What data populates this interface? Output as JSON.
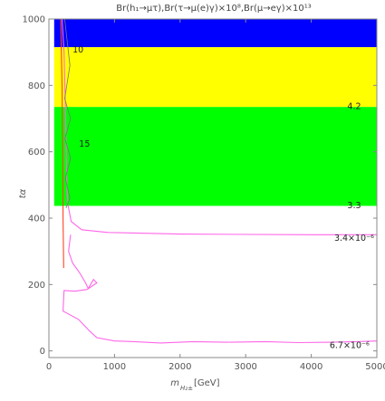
{
  "chart_data": {
    "type": "contour",
    "title": "Br(h₁→μτ),Br(τ→μ(e)γ)×10⁸,Br(μ→eγ)×10¹³",
    "xlabel": "m",
    "xlabel_sub": "H₂±",
    "xlabel_unit": "[GeV]",
    "ylabel": "tα",
    "xlim": [
      0,
      5000
    ],
    "ylim": [
      -20,
      1000
    ],
    "x_ticks": [
      "0",
      "1000",
      "2000",
      "3000",
      "4000",
      "5000"
    ],
    "y_ticks": [
      "0",
      "200",
      "400",
      "600",
      "800",
      "1000"
    ],
    "colors": {
      "blue_band": "#0000ff",
      "yellow_band": "#ffff00",
      "green_band": "#00ff00",
      "contour_pink": "#ff66e8",
      "contour_red": "#ff4422",
      "contour_gray": "#777777"
    },
    "bands": [
      {
        "color": "blue",
        "y_from": 915,
        "y_to": 1000
      },
      {
        "color": "yellow",
        "y_from": 735,
        "y_to": 915
      },
      {
        "color": "green",
        "y_from": 437,
        "y_to": 735
      }
    ],
    "annotations": [
      {
        "text": "10",
        "x": 360,
        "y": 908
      },
      {
        "text": "15",
        "x": 460,
        "y": 625
      },
      {
        "text": "4.2",
        "x": 4550,
        "y": 738
      },
      {
        "text": "3.3",
        "x": 4550,
        "y": 440
      },
      {
        "text": "3.4×10⁻⁶",
        "x": 4350,
        "y": 342
      },
      {
        "text": "6.7×10⁻⁶",
        "x": 4280,
        "y": 18
      }
    ],
    "curves": [
      {
        "color": "pink",
        "points": [
          [
            200,
            1000
          ],
          [
            230,
            900
          ],
          [
            255,
            700
          ],
          [
            270,
            520
          ],
          [
            290,
            440
          ],
          [
            340,
            390
          ],
          [
            500,
            365
          ],
          [
            900,
            357
          ],
          [
            2000,
            352
          ],
          [
            4000,
            350
          ],
          [
            5000,
            350
          ]
        ]
      },
      {
        "color": "pink",
        "points": [
          [
            330,
            350
          ],
          [
            300,
            300
          ],
          [
            360,
            265
          ],
          [
            470,
            235
          ],
          [
            560,
            205
          ],
          [
            600,
            188
          ],
          [
            680,
            215
          ],
          [
            730,
            205
          ],
          [
            580,
            185
          ],
          [
            400,
            180
          ],
          [
            230,
            182
          ],
          [
            215,
            120
          ],
          [
            450,
            95
          ],
          [
            620,
            60
          ],
          [
            730,
            40
          ],
          [
            1000,
            30
          ],
          [
            1300,
            28
          ],
          [
            1700,
            24
          ],
          [
            2200,
            28
          ],
          [
            2700,
            26
          ],
          [
            3300,
            28
          ],
          [
            3800,
            25
          ],
          [
            4300,
            26
          ],
          [
            4700,
            28
          ],
          [
            5000,
            30
          ]
        ]
      },
      {
        "color": "red",
        "points": [
          [
            180,
            1000
          ],
          [
            200,
            800
          ],
          [
            210,
            600
          ],
          [
            215,
            400
          ],
          [
            225,
            250
          ]
        ]
      },
      {
        "color": "gray",
        "points": [
          [
            240,
            1000
          ],
          [
            320,
            860
          ],
          [
            240,
            760
          ],
          [
            330,
            700
          ],
          [
            245,
            640
          ],
          [
            330,
            580
          ],
          [
            250,
            520
          ],
          [
            320,
            460
          ],
          [
            260,
            430
          ]
        ]
      }
    ]
  }
}
